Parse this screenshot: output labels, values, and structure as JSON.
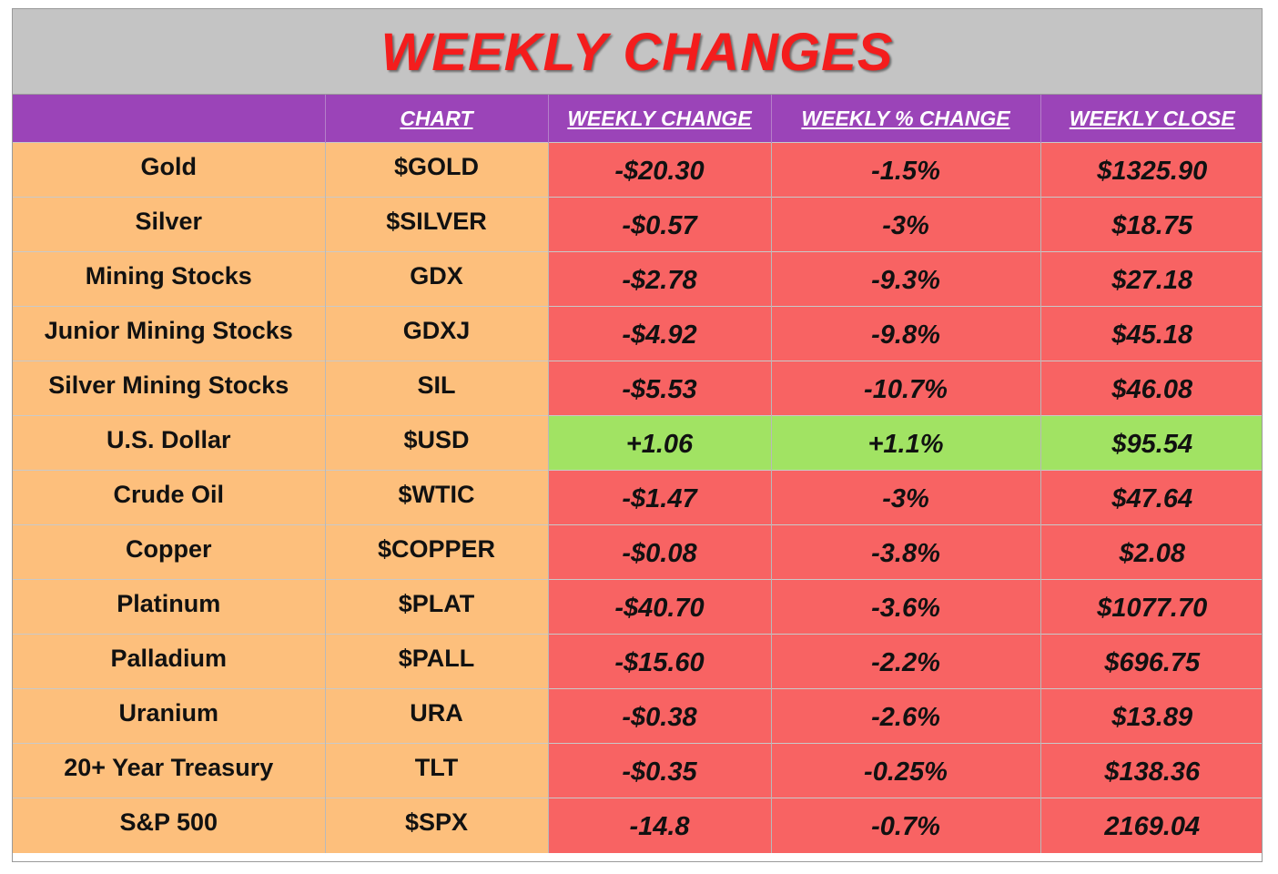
{
  "title": "WEEKLY CHANGES",
  "columns": {
    "name": "",
    "chart": "CHART",
    "change": "WEEKLY CHANGE",
    "pct": "WEEKLY % CHANGE",
    "close": "WEEKLY CLOSE"
  },
  "colors": {
    "title_text": "#f41d1d",
    "title_bg": "#c4c4c4",
    "header_bg": "#9b44b8",
    "label_bg": "#fdbf7c",
    "negative_bg": "#f86363",
    "positive_bg": "#a1e363"
  },
  "rows": [
    {
      "name": "Gold",
      "chart": "$GOLD",
      "change": "-$20.30",
      "pct": "-1.5%",
      "close": "$1325.90",
      "direction": "down"
    },
    {
      "name": "Silver",
      "chart": "$SILVER",
      "change": "-$0.57",
      "pct": "-3%",
      "close": "$18.75",
      "direction": "down"
    },
    {
      "name": "Mining Stocks",
      "chart": "GDX",
      "change": "-$2.78",
      "pct": "-9.3%",
      "close": "$27.18",
      "direction": "down"
    },
    {
      "name": "Junior Mining Stocks",
      "chart": "GDXJ",
      "change": "-$4.92",
      "pct": "-9.8%",
      "close": "$45.18",
      "direction": "down"
    },
    {
      "name": "Silver Mining Stocks",
      "chart": "SIL",
      "change": "-$5.53",
      "pct": "-10.7%",
      "close": "$46.08",
      "direction": "down"
    },
    {
      "name": "U.S. Dollar",
      "chart": "$USD",
      "change": "+1.06",
      "pct": "+1.1%",
      "close": "$95.54",
      "direction": "up"
    },
    {
      "name": "Crude Oil",
      "chart": "$WTIC",
      "change": "-$1.47",
      "pct": "-3%",
      "close": "$47.64",
      "direction": "down"
    },
    {
      "name": "Copper",
      "chart": "$COPPER",
      "change": "-$0.08",
      "pct": "-3.8%",
      "close": "$2.08",
      "direction": "down"
    },
    {
      "name": "Platinum",
      "chart": "$PLAT",
      "change": "-$40.70",
      "pct": "-3.6%",
      "close": "$1077.70",
      "direction": "down"
    },
    {
      "name": "Palladium",
      "chart": "$PALL",
      "change": "-$15.60",
      "pct": "-2.2%",
      "close": "$696.75",
      "direction": "down"
    },
    {
      "name": "Uranium",
      "chart": "URA",
      "change": "-$0.38",
      "pct": "-2.6%",
      "close": "$13.89",
      "direction": "down"
    },
    {
      "name": "20+ Year Treasury",
      "chart": "TLT",
      "change": "-$0.35",
      "pct": "-0.25%",
      "close": "$138.36",
      "direction": "down"
    },
    {
      "name": "S&P 500",
      "chart": "$SPX",
      "change": "-14.8",
      "pct": "-0.7%",
      "close": "2169.04",
      "direction": "down"
    }
  ]
}
